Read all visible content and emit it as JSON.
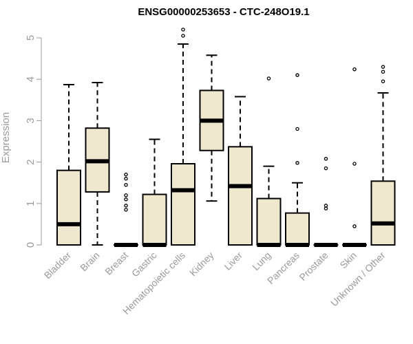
{
  "chart_data": {
    "type": "boxplot",
    "title": "ENSG00000253653 - CTC-248O19.1",
    "xlabel": "",
    "ylabel": "Expression",
    "ylim": [
      0,
      5
    ],
    "yticks": [
      0,
      1,
      2,
      3,
      4,
      5
    ],
    "box_color": "#efe8cf",
    "categories": [
      "Bladder",
      "Brain",
      "Breast",
      "Gastric",
      "Hematopoietic cells",
      "Kidney",
      "Liver",
      "Lung",
      "Pancreas",
      "Prostate",
      "Skin",
      "Unknown / Other"
    ],
    "boxes": [
      {
        "min": 0,
        "q1": 0,
        "median": 0.5,
        "q3": 1.8,
        "max": 3.87,
        "outliers": []
      },
      {
        "min": 0,
        "q1": 1.28,
        "median": 2.02,
        "q3": 2.82,
        "max": 3.92,
        "outliers": []
      },
      {
        "min": 0,
        "q1": 0,
        "median": 0,
        "q3": 0,
        "max": 0,
        "outliers": [
          0.85,
          0.95,
          1.1,
          1.2,
          1.45,
          1.6,
          1.7
        ]
      },
      {
        "min": 0,
        "q1": 0,
        "median": 0,
        "q3": 1.22,
        "max": 2.55,
        "outliers": []
      },
      {
        "min": 0,
        "q1": 0,
        "median": 1.32,
        "q3": 1.96,
        "max": 4.85,
        "outliers": [
          5.05,
          5.2
        ]
      },
      {
        "min": 1.06,
        "q1": 2.28,
        "median": 3.0,
        "q3": 3.73,
        "max": 4.58,
        "outliers": []
      },
      {
        "min": 0,
        "q1": 0,
        "median": 1.42,
        "q3": 2.37,
        "max": 3.58,
        "outliers": []
      },
      {
        "min": 0,
        "q1": 0,
        "median": 0,
        "q3": 1.12,
        "max": 1.9,
        "outliers": [
          4.02
        ]
      },
      {
        "min": 0,
        "q1": 0,
        "median": 0,
        "q3": 0.77,
        "max": 1.5,
        "outliers": [
          1.98,
          2.8,
          4.1
        ]
      },
      {
        "min": 0,
        "q1": 0,
        "median": 0,
        "q3": 0,
        "max": 0,
        "outliers": [
          0.88,
          0.95,
          1.85,
          2.08
        ]
      },
      {
        "min": 0,
        "q1": 0,
        "median": 0,
        "q3": 0,
        "max": 0,
        "outliers": [
          0.45,
          1.96,
          4.24
        ]
      },
      {
        "min": 0,
        "q1": 0,
        "median": 0.52,
        "q3": 1.54,
        "max": 3.67,
        "outliers": [
          3.95,
          4.18,
          4.3
        ]
      }
    ]
  }
}
